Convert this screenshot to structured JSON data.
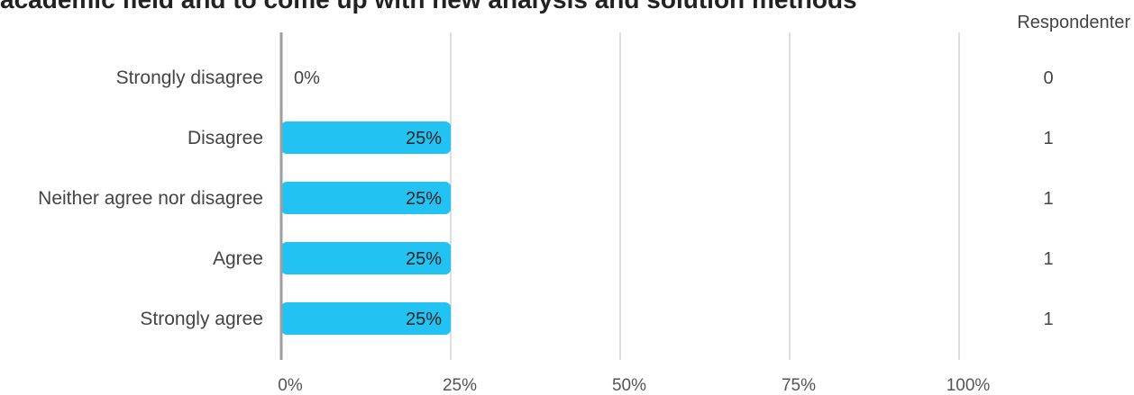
{
  "title": "academic field and to come up with new analysis and solution methods",
  "respondents_header": "Respondenter",
  "chart_data": {
    "type": "bar",
    "orientation": "horizontal",
    "categories": [
      "Strongly disagree",
      "Disagree",
      "Neither agree nor disagree",
      "Agree",
      "Strongly agree"
    ],
    "values": [
      0,
      25,
      25,
      25,
      25
    ],
    "value_labels": [
      "0%",
      "25%",
      "25%",
      "25%",
      "25%"
    ],
    "respondents": [
      "0",
      "1",
      "1",
      "1",
      "1"
    ],
    "x_ticks": [
      "0%",
      "25%",
      "50%",
      "75%",
      "100%"
    ],
    "xlim": [
      0,
      100
    ],
    "grid": true,
    "bar_color": "#22c3f2"
  }
}
